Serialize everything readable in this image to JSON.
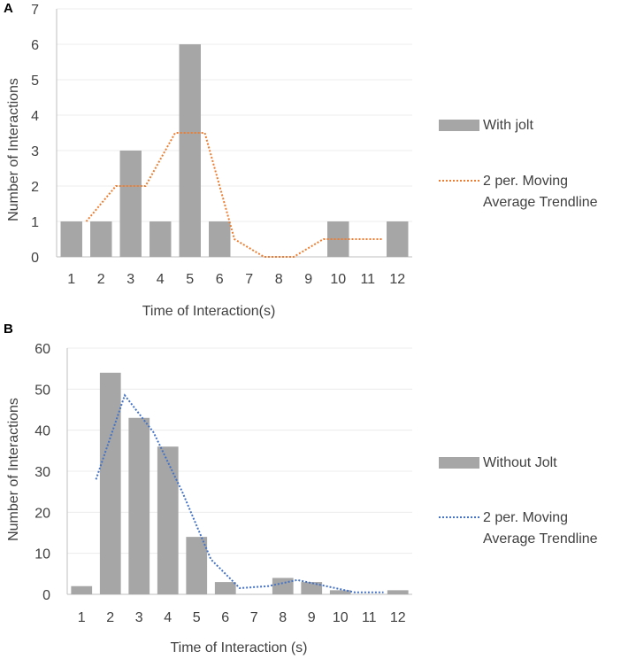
{
  "panels": {
    "a": {
      "label": "A"
    },
    "b": {
      "label": "B"
    }
  },
  "chart_data": [
    {
      "type": "bar",
      "panel": "A",
      "categories": [
        "1",
        "2",
        "3",
        "4",
        "5",
        "6",
        "7",
        "8",
        "9",
        "10",
        "11",
        "12"
      ],
      "series": [
        {
          "name": "With jolt",
          "values": [
            1,
            1,
            3,
            1,
            6,
            1,
            0,
            0,
            0,
            1,
            0,
            1
          ],
          "color": "#a6a6a6"
        }
      ],
      "trendline": {
        "name": "2 per. Moving Average Trendline",
        "type": "moving-average",
        "period": 2,
        "values": [
          null,
          1,
          2,
          2,
          3.5,
          3.5,
          0.5,
          0,
          0,
          0.5,
          0.5,
          0.5
        ],
        "color": "#ed7d31"
      },
      "title": "",
      "xlabel": "Time of Interaction(s)",
      "ylabel": "Number of Interactions",
      "yticks": [
        "0",
        "1",
        "2",
        "3",
        "4",
        "5",
        "6",
        "7"
      ],
      "ylim": [
        0,
        7
      ],
      "legend": {
        "position": "right",
        "bar_label": "With jolt",
        "trend_line1": "2 per. Moving",
        "trend_line2": "Average Trendline"
      }
    },
    {
      "type": "bar",
      "panel": "B",
      "categories": [
        "1",
        "2",
        "3",
        "4",
        "5",
        "6",
        "7",
        "8",
        "9",
        "10",
        "11",
        "12"
      ],
      "series": [
        {
          "name": "Without Jolt",
          "values": [
            2,
            54,
            43,
            36,
            14,
            3,
            0,
            4,
            3,
            1,
            0,
            1
          ],
          "color": "#a6a6a6"
        }
      ],
      "trendline": {
        "name": "2 per. Moving Average Trendline",
        "type": "moving-average",
        "period": 2,
        "values": [
          null,
          28,
          48.5,
          39.5,
          25,
          8.5,
          1.5,
          2,
          3.5,
          2,
          0.5,
          0.5
        ],
        "color": "#4472c4"
      },
      "title": "",
      "xlabel": "Time of Interaction (s)",
      "ylabel": "Number of Interactions",
      "yticks": [
        "0",
        "10",
        "20",
        "30",
        "40",
        "50",
        "60"
      ],
      "ylim": [
        0,
        60
      ],
      "legend": {
        "position": "right",
        "bar_label": "Without Jolt",
        "trend_line1": "2 per. Moving",
        "trend_line2": "Average Trendline"
      }
    }
  ]
}
